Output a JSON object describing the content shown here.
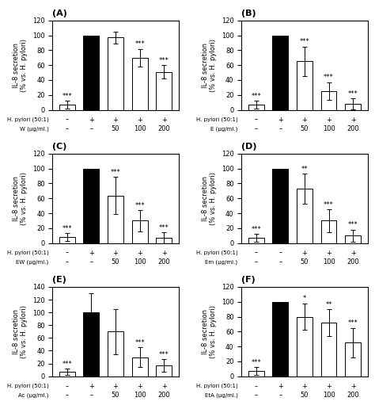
{
  "chart_data": [
    {
      "type": "bar",
      "title": "(A)",
      "ylabel": "IL-8 secretion\n(% vs. H. pylori)",
      "categories": [
        null,
        null,
        null,
        null,
        null
      ],
      "values": [
        7,
        100,
        97,
        70,
        51
      ],
      "errors": [
        5,
        0,
        8,
        12,
        9
      ],
      "colors": [
        "white",
        "black",
        "white",
        "white",
        "white"
      ],
      "ylim": [
        0,
        120
      ],
      "yticks": [
        0,
        20,
        40,
        60,
        80,
        100,
        120
      ],
      "tick_labels": "y",
      "annotations": {
        "above_bars": [
          "***",
          null,
          null,
          "***",
          "***"
        ],
        "rows": [
          {
            "label": "H. pylori (50:1)",
            "texts": [
              "–",
              "+",
              "+",
              "+",
              "+"
            ]
          },
          {
            "label": "W (μg/ml.)",
            "texts": [
              "–",
              "–",
              "50",
              "100",
              "200"
            ]
          }
        ]
      }
    },
    {
      "type": "bar",
      "title": "(B)",
      "ylabel": "IL-8 secretion\n(% vs. H. pylori)",
      "categories": [
        null,
        null,
        null,
        null,
        null
      ],
      "values": [
        7,
        100,
        65,
        25,
        8
      ],
      "errors": [
        5,
        0,
        20,
        12,
        7
      ],
      "colors": [
        "white",
        "black",
        "white",
        "white",
        "white"
      ],
      "ylim": [
        0,
        120
      ],
      "yticks": [
        0,
        20,
        40,
        60,
        80,
        100,
        120
      ],
      "tick_labels": "y",
      "annotations": {
        "above_bars": [
          "***",
          null,
          "***",
          "***",
          "***"
        ],
        "rows": [
          {
            "label": "H. pylori (50:1)",
            "texts": [
              "–",
              "+",
              "+",
              "+",
              "+"
            ]
          },
          {
            "label": "E (μg/ml.)",
            "texts": [
              "–",
              "–",
              "50",
              "100",
              "200"
            ]
          }
        ]
      }
    },
    {
      "type": "bar",
      "title": "(C)",
      "ylabel": "IL-8 secretion\n(% vs. H. pylori)",
      "categories": [
        null,
        null,
        null,
        null,
        null
      ],
      "values": [
        8,
        100,
        64,
        30,
        7
      ],
      "errors": [
        5,
        0,
        25,
        14,
        7
      ],
      "colors": [
        "white",
        "black",
        "white",
        "white",
        "white"
      ],
      "ylim": [
        0,
        120
      ],
      "yticks": [
        0,
        20,
        40,
        60,
        80,
        100,
        120
      ],
      "tick_labels": "y",
      "annotations": {
        "above_bars": [
          "***",
          null,
          "***",
          "***",
          "***"
        ],
        "rows": [
          {
            "label": "H. pylori (50:1)",
            "texts": [
              "–",
              "+",
              "+",
              "+",
              "+"
            ]
          },
          {
            "label": "EW (μg/ml.)",
            "texts": [
              "–",
              "–",
              "50",
              "100",
              "200"
            ]
          }
        ]
      }
    },
    {
      "type": "bar",
      "title": "(D)",
      "ylabel": "IL-8 secretion\n(% vs. H. pylori)",
      "categories": [
        null,
        null,
        null,
        null,
        null
      ],
      "values": [
        7,
        100,
        73,
        30,
        10
      ],
      "errors": [
        5,
        0,
        20,
        15,
        8
      ],
      "colors": [
        "white",
        "black",
        "white",
        "white",
        "white"
      ],
      "ylim": [
        0,
        120
      ],
      "yticks": [
        0,
        20,
        40,
        60,
        80,
        100,
        120
      ],
      "tick_labels": "y",
      "annotations": {
        "above_bars": [
          "***",
          null,
          "**",
          "***",
          "***"
        ],
        "rows": [
          {
            "label": "H. pylori (50:1)",
            "texts": [
              "–",
              "–",
              "+",
              "+",
              "+"
            ]
          },
          {
            "label": "Em (μg/ml.)",
            "texts": [
              "–",
              "–",
              "50",
              "100",
              "200"
            ]
          }
        ]
      }
    },
    {
      "type": "bar",
      "title": "(E)",
      "ylabel": "IL-8 secretion\n(% vs. H. pylori)",
      "categories": [
        null,
        null,
        null,
        null,
        null
      ],
      "values": [
        7,
        100,
        70,
        30,
        17
      ],
      "errors": [
        5,
        30,
        35,
        15,
        10
      ],
      "colors": [
        "white",
        "black",
        "white",
        "white",
        "white"
      ],
      "ylim": [
        0,
        140
      ],
      "yticks": [
        0,
        20,
        40,
        60,
        80,
        100,
        120,
        140
      ],
      "tick_labels": "y",
      "annotations": {
        "above_bars": [
          "***",
          null,
          null,
          "***",
          "***"
        ],
        "rows": [
          {
            "label": "H. pylori (50:1)",
            "texts": [
              "–",
              "+",
              "+",
              "+",
              "+"
            ]
          },
          {
            "label": "Ac (μg/ml.)",
            "texts": [
              "–",
              "–",
              "50",
              "100",
              "200"
            ]
          }
        ]
      }
    },
    {
      "type": "bar",
      "title": "(F)",
      "ylabel": "IL-8 secretion\n(% vs. H. pylori)",
      "categories": [
        null,
        null,
        null,
        null,
        null
      ],
      "values": [
        7,
        100,
        80,
        72,
        45
      ],
      "errors": [
        5,
        0,
        18,
        18,
        20
      ],
      "colors": [
        "white",
        "black",
        "white",
        "white",
        "white"
      ],
      "ylim": [
        0,
        120
      ],
      "yticks": [
        0,
        20,
        40,
        60,
        80,
        100,
        120
      ],
      "tick_labels": "y",
      "annotations": {
        "above_bars": [
          "***",
          null,
          "*",
          "**",
          "***"
        ],
        "rows": [
          {
            "label": "H. pylori (50:1)",
            "texts": [
              "–",
              "+",
              "+",
              "+",
              "+"
            ]
          },
          {
            "label": "EtA (μg/ml.)",
            "texts": [
              "–",
              "–",
              "50",
              "100",
              "200"
            ]
          }
        ]
      }
    }
  ]
}
